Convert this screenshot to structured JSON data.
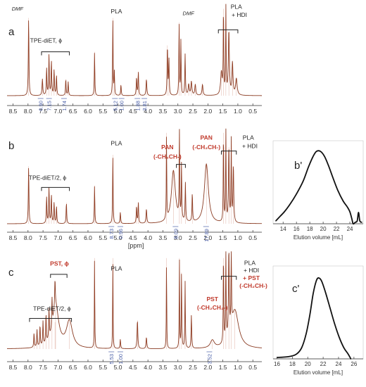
{
  "colors": {
    "spectrum": "#8a3b22",
    "spectrum_thin": "#b84a2c",
    "baseline": "#3a2418",
    "axis": "#333333",
    "integral_text": "#4a5fa8",
    "polymer_label": "#c0392b",
    "label": "#222222",
    "gpc_curve": "#111111"
  },
  "chart_data": [
    {
      "id": "a",
      "type": "line",
      "panel_label": "a",
      "xlim": [
        8.7,
        0.2
      ],
      "ticks": [
        "8.5",
        "8.0",
        "7.5",
        "7.0",
        "6.5",
        "6.0",
        "5.5",
        "5.0",
        "4.5",
        "4.0",
        "3.5",
        "3.0",
        "2.5",
        "2.0",
        "1.5",
        "1.0",
        "0.5"
      ],
      "xlabel": "",
      "peaks": [
        {
          "x": 7.98,
          "h": 0.85,
          "w": 0.012
        },
        {
          "x": 7.52,
          "h": 0.18,
          "w": 0.015
        },
        {
          "x": 7.38,
          "h": 0.3,
          "w": 0.012
        },
        {
          "x": 7.3,
          "h": 0.45,
          "w": 0.012
        },
        {
          "x": 7.22,
          "h": 0.38,
          "w": 0.012
        },
        {
          "x": 7.13,
          "h": 0.28,
          "w": 0.012
        },
        {
          "x": 7.05,
          "h": 0.22,
          "w": 0.012
        },
        {
          "x": 6.74,
          "h": 0.18,
          "w": 0.012
        },
        {
          "x": 6.66,
          "h": 0.15,
          "w": 0.012
        },
        {
          "x": 5.78,
          "h": 0.48,
          "w": 0.01
        },
        {
          "x": 5.17,
          "h": 0.85,
          "w": 0.01
        },
        {
          "x": 5.12,
          "h": 0.25,
          "w": 0.01
        },
        {
          "x": 4.9,
          "h": 0.12,
          "w": 0.012
        },
        {
          "x": 4.38,
          "h": 0.2,
          "w": 0.012
        },
        {
          "x": 4.32,
          "h": 0.26,
          "w": 0.012
        },
        {
          "x": 4.05,
          "h": 0.18,
          "w": 0.015
        },
        {
          "x": 3.35,
          "h": 0.55,
          "w": 0.012
        },
        {
          "x": 3.3,
          "h": 0.4,
          "w": 0.012
        },
        {
          "x": 2.96,
          "h": 0.8,
          "w": 0.01
        },
        {
          "x": 2.9,
          "h": 0.6,
          "w": 0.01
        },
        {
          "x": 2.76,
          "h": 0.45,
          "w": 0.012
        },
        {
          "x": 2.64,
          "h": 0.12,
          "w": 0.02
        },
        {
          "x": 2.55,
          "h": 0.15,
          "w": 0.02
        },
        {
          "x": 2.42,
          "h": 0.12,
          "w": 0.02
        },
        {
          "x": 2.18,
          "h": 0.12,
          "w": 0.02
        },
        {
          "x": 1.55,
          "h": 0.25,
          "w": 0.03
        },
        {
          "x": 1.48,
          "h": 0.95,
          "w": 0.01
        },
        {
          "x": 1.4,
          "h": 0.95,
          "w": 0.01
        },
        {
          "x": 1.3,
          "h": 0.7,
          "w": 0.02
        },
        {
          "x": 1.18,
          "h": 0.35,
          "w": 0.02
        },
        {
          "x": 1.05,
          "h": 0.18,
          "w": 0.03
        }
      ],
      "integrals": [
        {
          "x": 7.58,
          "text": "0.90"
        },
        {
          "x": 7.3,
          "text": "7.15"
        },
        {
          "x": 6.8,
          "text": "1.74"
        },
        {
          "x": 5.1,
          "text": "5.12"
        },
        {
          "x": 4.88,
          "text": "1.00"
        },
        {
          "x": 4.35,
          "text": "1.88"
        },
        {
          "x": 4.12,
          "text": "3.81"
        }
      ],
      "labels": [
        {
          "text": "DMF",
          "x": 8.35,
          "italic": true,
          "y": 0.93,
          "color": "label"
        },
        {
          "text": "PLA",
          "x": 5.05,
          "y": 0.9,
          "color": "label"
        },
        {
          "text": "DMF",
          "x": 2.65,
          "italic": true,
          "y": 0.88,
          "color": "label"
        },
        {
          "text": "PLA",
          "x": 1.05,
          "y": 0.95,
          "color": "label"
        },
        {
          "text": "+ HDI",
          "x": 0.95,
          "y": 0.86,
          "color": "label"
        },
        {
          "text": "TPE-diET,  ϕ",
          "x": 7.4,
          "y": 0.58,
          "color": "label"
        }
      ],
      "brackets": [
        {
          "x1": 7.55,
          "x2": 6.62,
          "y": 0.48
        },
        {
          "x1": 1.65,
          "x2": 1.0,
          "y": 0.72
        }
      ]
    },
    {
      "id": "b",
      "type": "line",
      "panel_label": "b",
      "xlim": [
        8.7,
        0.2
      ],
      "ticks": [
        "8.5",
        "8.0",
        "7.5",
        "7.0",
        "6.5",
        "6.0",
        "5.5",
        "5.0",
        "4.5",
        "4.0",
        "3.5",
        "3.0",
        "2.5",
        "2.0",
        "1.5",
        "1.0",
        "0.5"
      ],
      "xlabel": "[ppm]",
      "peaks": [
        {
          "x": 7.98,
          "h": 0.6,
          "w": 0.012
        },
        {
          "x": 7.38,
          "h": 0.28,
          "w": 0.012
        },
        {
          "x": 7.3,
          "h": 0.38,
          "w": 0.012
        },
        {
          "x": 7.22,
          "h": 0.3,
          "w": 0.012
        },
        {
          "x": 7.13,
          "h": 0.22,
          "w": 0.012
        },
        {
          "x": 7.05,
          "h": 0.18,
          "w": 0.012
        },
        {
          "x": 6.72,
          "h": 0.22,
          "w": 0.012
        },
        {
          "x": 5.78,
          "h": 0.4,
          "w": 0.01
        },
        {
          "x": 5.17,
          "h": 0.72,
          "w": 0.01
        },
        {
          "x": 4.92,
          "h": 0.12,
          "w": 0.012
        },
        {
          "x": 4.38,
          "h": 0.18,
          "w": 0.012
        },
        {
          "x": 4.32,
          "h": 0.22,
          "w": 0.012
        },
        {
          "x": 4.05,
          "h": 0.15,
          "w": 0.015
        },
        {
          "x": 3.38,
          "h": 0.95,
          "w": 0.008
        },
        {
          "x": 3.15,
          "h": 0.55,
          "w": 0.08
        },
        {
          "x": 2.95,
          "h": 0.92,
          "w": 0.01
        },
        {
          "x": 2.88,
          "h": 0.6,
          "w": 0.01
        },
        {
          "x": 2.75,
          "h": 0.4,
          "w": 0.012
        },
        {
          "x": 2.52,
          "h": 0.3,
          "w": 0.012
        },
        {
          "x": 2.05,
          "h": 0.62,
          "w": 0.08
        },
        {
          "x": 1.48,
          "h": 0.95,
          "w": 0.01
        },
        {
          "x": 1.4,
          "h": 0.95,
          "w": 0.01
        },
        {
          "x": 1.3,
          "h": 0.8,
          "w": 0.015
        },
        {
          "x": 1.22,
          "h": 0.85,
          "w": 0.01
        },
        {
          "x": 1.15,
          "h": 0.6,
          "w": 0.015
        }
      ],
      "integrals": [
        {
          "x": 5.22,
          "text": "8.73"
        },
        {
          "x": 4.92,
          "text": "0.96"
        },
        {
          "x": 3.08,
          "text": "8.09"
        },
        {
          "x": 2.06,
          "text": "17.89"
        }
      ],
      "labels": [
        {
          "text": "PLA",
          "x": 5.05,
          "y": 0.82,
          "color": "label"
        },
        {
          "text": "TPE-diET/2,  ϕ",
          "x": 7.35,
          "y": 0.46,
          "color": "label"
        },
        {
          "text": "PAN",
          "x": 3.35,
          "y": 0.78,
          "color": "polymer_label",
          "bold": true
        },
        {
          "text": "(-CH₂CH-)",
          "x": 3.35,
          "y": 0.68,
          "color": "polymer_label",
          "bold": true
        },
        {
          "text": "PAN",
          "x": 2.05,
          "y": 0.88,
          "color": "polymer_label",
          "bold": true
        },
        {
          "text": "(-CH₂CH-)",
          "x": 2.05,
          "y": 0.78,
          "color": "polymer_label",
          "bold": true
        },
        {
          "text": "PLA",
          "x": 0.65,
          "y": 0.88,
          "color": "label"
        },
        {
          "text": "+ HDI",
          "x": 0.6,
          "y": 0.79,
          "color": "label"
        }
      ],
      "brackets": [
        {
          "x1": 7.55,
          "x2": 6.62,
          "y": 0.38
        },
        {
          "x1": 3.05,
          "x2": 2.75,
          "y": 0.62
        },
        {
          "x1": 1.55,
          "x2": 1.05,
          "y": 0.76
        }
      ]
    },
    {
      "id": "c",
      "type": "line",
      "panel_label": "c",
      "xlim": [
        8.7,
        0.2
      ],
      "ticks": [
        "8.5",
        "8.0",
        "7.5",
        "7.0",
        "6.5",
        "6.0",
        "5.5",
        "5.0",
        "4.5",
        "4.0",
        "3.5",
        "3.0",
        "2.5",
        "2.0",
        "1.5",
        "1.0",
        "0.5"
      ],
      "xlabel": "",
      "peaks": [
        {
          "x": 7.8,
          "h": 0.15,
          "w": 0.012
        },
        {
          "x": 7.7,
          "h": 0.18,
          "w": 0.012
        },
        {
          "x": 7.6,
          "h": 0.22,
          "w": 0.012
        },
        {
          "x": 7.5,
          "h": 0.25,
          "w": 0.012
        },
        {
          "x": 7.4,
          "h": 0.3,
          "w": 0.012
        },
        {
          "x": 7.3,
          "h": 0.32,
          "w": 0.012
        },
        {
          "x": 7.2,
          "h": 0.3,
          "w": 0.012
        },
        {
          "x": 7.1,
          "h": 0.28,
          "w": 0.012
        },
        {
          "x": 7.08,
          "h": 0.45,
          "w": 0.12
        },
        {
          "x": 6.62,
          "h": 0.28,
          "w": 0.12
        },
        {
          "x": 5.78,
          "h": 0.95,
          "w": 0.008
        },
        {
          "x": 5.17,
          "h": 0.95,
          "w": 0.008
        },
        {
          "x": 4.92,
          "h": 0.1,
          "w": 0.012
        },
        {
          "x": 4.35,
          "h": 0.3,
          "w": 0.015
        },
        {
          "x": 4.05,
          "h": 0.12,
          "w": 0.015
        },
        {
          "x": 3.38,
          "h": 0.95,
          "w": 0.008
        },
        {
          "x": 2.95,
          "h": 0.95,
          "w": 0.008
        },
        {
          "x": 2.88,
          "h": 0.8,
          "w": 0.01
        },
        {
          "x": 2.76,
          "h": 0.7,
          "w": 0.01
        },
        {
          "x": 2.55,
          "h": 0.35,
          "w": 0.012
        },
        {
          "x": 1.85,
          "h": 0.08,
          "w": 0.08
        },
        {
          "x": 1.48,
          "h": 0.95,
          "w": 0.01
        },
        {
          "x": 1.4,
          "h": 0.95,
          "w": 0.01
        },
        {
          "x": 1.3,
          "h": 0.9,
          "w": 0.015
        },
        {
          "x": 1.22,
          "h": 0.9,
          "w": 0.01
        },
        {
          "x": 1.1,
          "h": 0.4,
          "w": 0.15
        }
      ],
      "integrals": [
        {
          "x": 5.22,
          "text": "5.53"
        },
        {
          "x": 4.92,
          "text": "1.00"
        },
        {
          "x": 1.95,
          "text": "3.52"
        }
      ],
      "labels": [
        {
          "text": "PLA",
          "x": 5.05,
          "y": 0.82,
          "color": "label"
        },
        {
          "text": "PST,  ϕ",
          "x": 6.95,
          "y": 0.87,
          "color": "polymer_label",
          "bold": true
        },
        {
          "text": "TPE-diET/2,  ϕ",
          "x": 7.2,
          "y": 0.4,
          "color": "label"
        },
        {
          "text": "PST",
          "x": 1.85,
          "y": 0.5,
          "color": "polymer_label",
          "bold": true
        },
        {
          "text": "(-CH₂CH₂-)",
          "x": 1.85,
          "y": 0.41,
          "color": "polymer_label",
          "bold": true
        },
        {
          "text": "PLA",
          "x": 0.6,
          "y": 0.88,
          "color": "label"
        },
        {
          "text": "+ HDI",
          "x": 0.55,
          "y": 0.8,
          "color": "label"
        },
        {
          "text": "+ PST",
          "x": 0.55,
          "y": 0.72,
          "color": "polymer_label",
          "bold": true
        },
        {
          "text": "(-CH₂CH-)",
          "x": 0.48,
          "y": 0.64,
          "color": "polymer_label",
          "bold": true
        }
      ],
      "brackets": [
        {
          "x1": 7.25,
          "x2": 6.7,
          "y": 0.78
        },
        {
          "x1": 7.95,
          "x2": 6.55,
          "y": 0.32
        },
        {
          "x1": 1.55,
          "x2": 1.05,
          "y": 0.76
        }
      ]
    },
    {
      "id": "b_prime",
      "type": "line",
      "panel_label": "b'",
      "xlim": [
        12.5,
        26.0
      ],
      "ticks": [
        "14",
        "16",
        "18",
        "20",
        "22",
        "24"
      ],
      "tick_values": [
        14,
        16,
        18,
        20,
        22,
        24
      ],
      "xlabel": "Elution volume [mL]",
      "ylim": [
        0,
        1.15
      ],
      "points": [
        [
          12.9,
          0.02
        ],
        [
          13.5,
          0.08
        ],
        [
          14.2,
          0.15
        ],
        [
          15.0,
          0.25
        ],
        [
          16.0,
          0.4
        ],
        [
          17.0,
          0.58
        ],
        [
          17.8,
          0.78
        ],
        [
          18.5,
          0.93
        ],
        [
          19.0,
          1.0
        ],
        [
          19.6,
          1.0
        ],
        [
          20.2,
          0.93
        ],
        [
          20.8,
          0.8
        ],
        [
          21.5,
          0.62
        ],
        [
          22.2,
          0.45
        ],
        [
          23.0,
          0.3
        ],
        [
          23.6,
          0.22
        ],
        [
          24.0,
          0.15
        ],
        [
          24.3,
          0.05
        ],
        [
          24.5,
          -0.02
        ],
        [
          24.8,
          0.0
        ],
        [
          25.1,
          0.02
        ],
        [
          25.3,
          0.14
        ],
        [
          25.5,
          0.02
        ],
        [
          25.8,
          0.0
        ]
      ]
    },
    {
      "id": "c_prime",
      "type": "line",
      "panel_label": "c'",
      "xlim": [
        15.5,
        27.2
      ],
      "ticks": [
        "16",
        "18",
        "20",
        "22",
        "24",
        "26"
      ],
      "tick_values": [
        16,
        18,
        20,
        22,
        24,
        26
      ],
      "xlabel": "Elution volume [mL]",
      "ylim": [
        0,
        1.15
      ],
      "points": [
        [
          16.0,
          0.0
        ],
        [
          17.5,
          0.01
        ],
        [
          18.5,
          0.04
        ],
        [
          19.2,
          0.12
        ],
        [
          19.8,
          0.3
        ],
        [
          20.3,
          0.55
        ],
        [
          20.7,
          0.8
        ],
        [
          21.1,
          0.96
        ],
        [
          21.4,
          1.0
        ],
        [
          21.8,
          0.96
        ],
        [
          22.3,
          0.82
        ],
        [
          22.9,
          0.62
        ],
        [
          23.5,
          0.42
        ],
        [
          24.1,
          0.25
        ],
        [
          24.7,
          0.12
        ],
        [
          25.2,
          0.05
        ],
        [
          25.5,
          0.0
        ],
        [
          25.6,
          -0.02
        ]
      ]
    }
  ]
}
